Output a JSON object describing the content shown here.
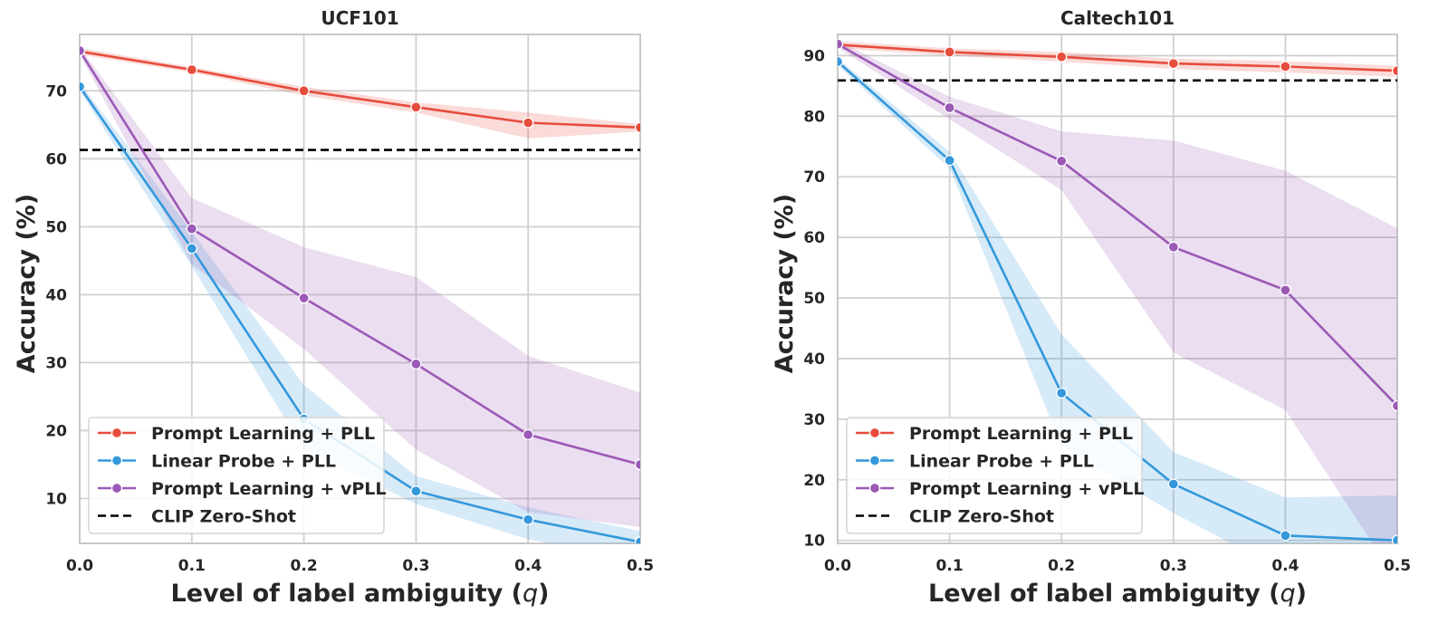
{
  "chart_data": [
    {
      "type": "line",
      "title": "UCF101",
      "xlabel": "Level of label ambiguity (q)",
      "xlabel_parts": [
        "Level of label ambiguity (",
        "q",
        ")"
      ],
      "ylabel": "Accuracy (%)",
      "x": [
        0.0,
        0.1,
        0.2,
        0.3,
        0.4,
        0.5
      ],
      "x_ticks": [
        "0.0",
        "0.1",
        "0.2",
        "0.3",
        "0.4",
        "0.5"
      ],
      "y_ticks": [
        "10",
        "20",
        "30",
        "40",
        "50",
        "60",
        "70"
      ],
      "xlim": [
        0.0,
        0.5
      ],
      "ylim": [
        3.4,
        78.3
      ],
      "grid": true,
      "legend_position": "lower-left",
      "series": [
        {
          "name": "Prompt Learning + PLL",
          "color": "#e74c3c",
          "values": [
            75.8,
            73.1,
            70.0,
            67.6,
            65.3,
            64.6
          ],
          "lower": [
            75.3,
            72.7,
            69.3,
            66.8,
            63.0,
            64.0
          ],
          "upper": [
            76.3,
            73.5,
            70.6,
            68.3,
            66.8,
            65.1
          ]
        },
        {
          "name": "Linear Probe + PLL",
          "color": "#3498db",
          "values": [
            70.6,
            46.8,
            21.7,
            11.1,
            6.9,
            3.6
          ],
          "lower": [
            70.0,
            44.2,
            17.2,
            9.2,
            4.0,
            0.8
          ],
          "upper": [
            71.2,
            49.3,
            26.7,
            13.3,
            8.7,
            5.2
          ]
        },
        {
          "name": "Prompt Learning + vPLL",
          "color": "#9b59b6",
          "values": [
            75.9,
            49.7,
            39.5,
            29.8,
            19.4,
            15.0
          ],
          "lower": [
            75.4,
            44.5,
            32.0,
            17.2,
            8.0,
            5.8
          ],
          "upper": [
            76.4,
            54.2,
            47.0,
            42.6,
            31.0,
            25.6
          ]
        }
      ],
      "reference_lines": [
        {
          "name": "CLIP Zero-Shot",
          "color": "#000000",
          "style": "dashed",
          "y": 61.3
        }
      ]
    },
    {
      "type": "line",
      "title": "Caltech101",
      "xlabel": "Level of label ambiguity (q)",
      "xlabel_parts": [
        "Level of label ambiguity (",
        "q",
        ")"
      ],
      "ylabel": "Accuracy (%)",
      "x": [
        0.0,
        0.1,
        0.2,
        0.3,
        0.4,
        0.5
      ],
      "x_ticks": [
        "0.0",
        "0.1",
        "0.2",
        "0.3",
        "0.4",
        "0.5"
      ],
      "y_ticks": [
        "10",
        "20",
        "30",
        "40",
        "50",
        "60",
        "70",
        "80",
        "90"
      ],
      "xlim": [
        0.0,
        0.5
      ],
      "ylim": [
        9.5,
        93.5
      ],
      "grid": true,
      "legend_position": "lower-left",
      "series": [
        {
          "name": "Prompt Learning + PLL",
          "color": "#e74c3c",
          "values": [
            91.8,
            90.6,
            89.8,
            88.7,
            88.2,
            87.5
          ],
          "lower": [
            91.2,
            90.0,
            89.0,
            87.8,
            87.2,
            86.5
          ],
          "upper": [
            92.4,
            91.2,
            90.6,
            89.5,
            89.1,
            88.3
          ]
        },
        {
          "name": "Linear Probe + PLL",
          "color": "#3498db",
          "values": [
            89.0,
            72.7,
            34.3,
            19.3,
            10.8,
            10.0
          ],
          "lower": [
            88.4,
            71.4,
            25.5,
            14.5,
            4.8,
            4.5
          ],
          "upper": [
            89.6,
            74.1,
            44.0,
            24.6,
            17.1,
            17.4
          ]
        },
        {
          "name": "Prompt Learning + vPLL",
          "color": "#9b59b6",
          "values": [
            91.9,
            81.4,
            72.6,
            58.4,
            51.3,
            32.2
          ],
          "lower": [
            91.3,
            79.5,
            67.8,
            41.0,
            31.5,
            3.2
          ],
          "upper": [
            92.5,
            83.2,
            77.5,
            76.0,
            71.0,
            61.5
          ]
        }
      ],
      "reference_lines": [
        {
          "name": "CLIP Zero-Shot",
          "color": "#000000",
          "style": "dashed",
          "y": 85.9
        }
      ]
    }
  ]
}
